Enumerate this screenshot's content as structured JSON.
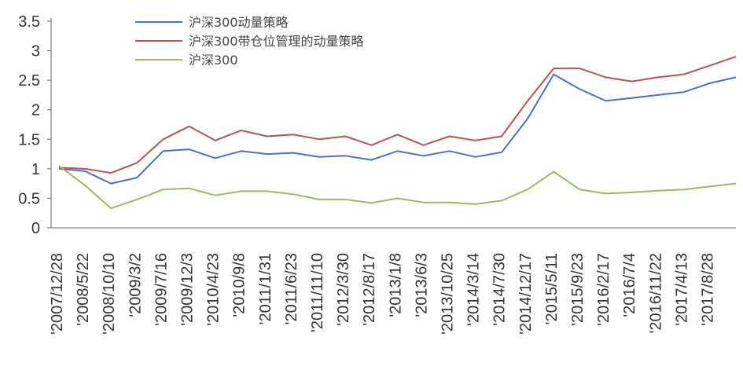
{
  "chart_data": {
    "type": "line",
    "title": "",
    "xlabel": "",
    "ylabel": "",
    "ylim": [
      0,
      3.5
    ],
    "yticks": [
      "0",
      "0.5",
      "1",
      "1.5",
      "2",
      "2.5",
      "3",
      "3.5"
    ],
    "grid": false,
    "legend_position": "top-left",
    "x_ticks": [
      "2007/12/28",
      "2008/5/22",
      "2008/10/10",
      "2009/3/2",
      "2009/7/16",
      "2009/12/3",
      "2010/4/23",
      "2010/9/8",
      "2011/1/31",
      "2011/6/23",
      "2011/11/10",
      "2012/3/30",
      "2012/8/17",
      "2013/1/8",
      "2013/6/3",
      "2013/10/25",
      "2014/3/14",
      "2014/7/30",
      "2014/12/17",
      "2015/5/11",
      "2015/9/23",
      "2016/2/17",
      "2016/7/4",
      "2016/11/22",
      "2017/4/13",
      "2017/8/28"
    ],
    "series": [
      {
        "name": "沪深300动量策略",
        "color": "#4472c4",
        "values": [
          1.0,
          0.96,
          0.75,
          0.85,
          1.3,
          1.33,
          1.18,
          1.3,
          1.25,
          1.27,
          1.2,
          1.22,
          1.15,
          1.3,
          1.22,
          1.3,
          1.2,
          1.28,
          1.85,
          2.6,
          2.35,
          2.15,
          2.2,
          2.25,
          2.3,
          2.45,
          2.55
        ]
      },
      {
        "name": "沪深300带仓位管理的动量策略",
        "color": "#c0504d",
        "values": [
          1.02,
          1.0,
          0.93,
          1.1,
          1.5,
          1.72,
          1.48,
          1.65,
          1.55,
          1.58,
          1.5,
          1.55,
          1.4,
          1.58,
          1.4,
          1.55,
          1.48,
          1.55,
          2.15,
          2.7,
          2.7,
          2.55,
          2.48,
          2.55,
          2.6,
          2.75,
          2.9
        ]
      },
      {
        "name": "沪深300",
        "color": "#9bbb59",
        "values": [
          1.05,
          0.72,
          0.33,
          0.48,
          0.65,
          0.67,
          0.55,
          0.62,
          0.62,
          0.57,
          0.48,
          0.48,
          0.42,
          0.5,
          0.43,
          0.43,
          0.4,
          0.46,
          0.65,
          0.95,
          0.65,
          0.58,
          0.6,
          0.63,
          0.65,
          0.7,
          0.75
        ]
      }
    ]
  }
}
